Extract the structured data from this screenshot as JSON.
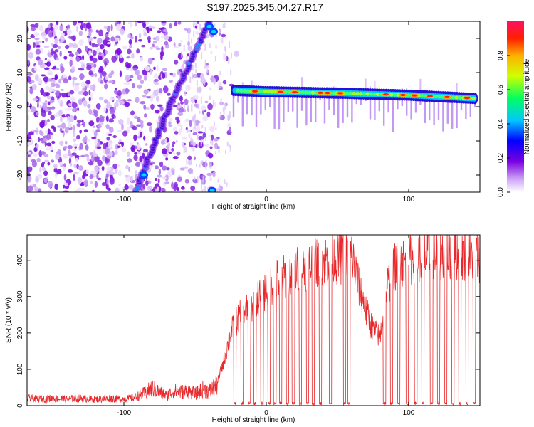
{
  "title": "S197.2025.345.04.27.R17",
  "chart_data": [
    {
      "type": "heatmap",
      "xlabel": "Height of straight line (km)",
      "ylabel": "Frequency (Hz)",
      "xlim": [
        -168,
        150
      ],
      "ylim": [
        -25,
        25
      ],
      "xticks": [
        -100,
        0,
        100
      ],
      "yticks": [
        -20,
        -10,
        0,
        10,
        20
      ],
      "ridges": [
        {
          "name": "tone-track",
          "points": [
            [
              -23,
              4.8
            ],
            [
              0,
              4.4
            ],
            [
              50,
              4.0
            ],
            [
              100,
              3.4
            ],
            [
              148,
              2.4
            ]
          ]
        },
        {
          "name": "diagonal-streak",
          "points": [
            [
              -92,
              -25
            ],
            [
              -78,
              -10
            ],
            [
              -64,
              4
            ],
            [
              -50,
              16
            ],
            [
              -40,
              25
            ]
          ]
        }
      ],
      "colorbar": {
        "label": "Normalized spectral amplitude",
        "ticks": [
          0.0,
          0.2,
          0.4,
          0.6,
          0.8
        ],
        "range": [
          0,
          1
        ]
      }
    },
    {
      "type": "line",
      "xlabel": "Height of straight line (km)",
      "ylabel": "SNR (10 * v/v)",
      "xlim": [
        -168,
        150
      ],
      "ylim": [
        0,
        470
      ],
      "xticks": [
        -100,
        0,
        100
      ],
      "yticks": [
        0,
        100,
        200,
        300,
        400
      ],
      "series": [
        {
          "name": "SNR",
          "color": "#e8282a",
          "x": [
            -168,
            -160,
            -150,
            -140,
            -130,
            -120,
            -110,
            -100,
            -95,
            -90,
            -85,
            -80,
            -75,
            -70,
            -65,
            -60,
            -55,
            -50,
            -45,
            -40,
            -35,
            -30,
            -25,
            -20,
            -15,
            -10,
            -5,
            0,
            5,
            10,
            15,
            20,
            25,
            30,
            35,
            40,
            45,
            50,
            55,
            60,
            65,
            70,
            75,
            80,
            85,
            90,
            95,
            100,
            105,
            110,
            115,
            120,
            125,
            130,
            135,
            140,
            145,
            150
          ],
          "y": [
            20,
            18,
            20,
            18,
            20,
            17,
            20,
            18,
            20,
            26,
            35,
            48,
            38,
            28,
            40,
            38,
            40,
            32,
            45,
            40,
            55,
            120,
            200,
            240,
            260,
            275,
            300,
            320,
            340,
            350,
            360,
            370,
            380,
            385,
            392,
            400,
            405,
            400,
            408,
            415,
            330,
            260,
            210,
            190,
            330,
            380,
            395,
            400,
            408,
            410,
            415,
            418,
            420,
            420,
            418,
            415,
            412,
            410
          ],
          "dropouts": [
            -27,
            -22,
            -17,
            -12,
            -8,
            -3,
            2,
            6,
            10,
            15,
            19,
            24,
            29,
            33,
            38,
            45,
            55,
            58,
            83,
            88,
            93,
            99,
            105,
            110,
            116,
            121,
            126,
            131,
            136,
            141,
            146
          ]
        }
      ]
    }
  ]
}
